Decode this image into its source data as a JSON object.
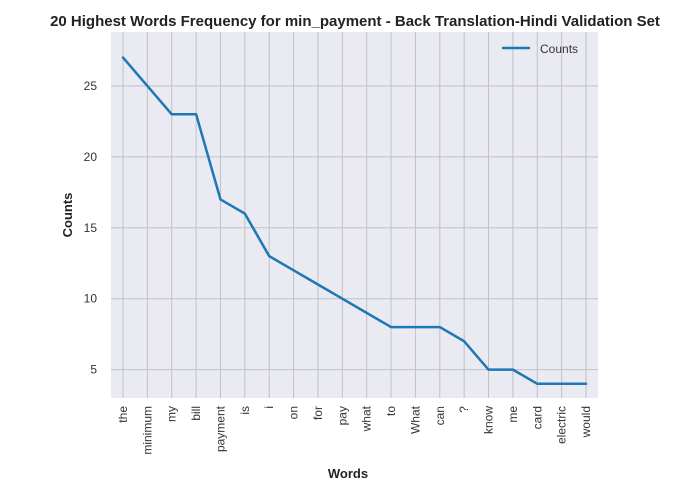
{
  "chart_data": {
    "type": "line",
    "title": "20 Highest Words Frequency for min_payment - Back Translation-Hindi Validation Set",
    "xlabel": "Words",
    "ylabel": "Counts",
    "categories": [
      "the",
      "minimum",
      "my",
      "bill",
      "payment",
      "is",
      "i",
      "on",
      "for",
      "pay",
      "what",
      "to",
      "What",
      "can",
      "?",
      "know",
      "me",
      "card",
      "electric",
      "would"
    ],
    "series": [
      {
        "name": "Counts",
        "values": [
          27,
          25,
          23,
          23,
          17,
          16,
          13,
          12,
          11,
          10,
          9,
          8,
          8,
          8,
          7,
          5,
          5,
          4,
          4,
          4
        ]
      }
    ],
    "ylim": [
      3,
      28.8
    ],
    "yticks": [
      5,
      10,
      15,
      20,
      25
    ],
    "grid": true,
    "legend_position": "top-right",
    "colors": {
      "line": "#1f77b4",
      "plot_background": "#eaeaf2",
      "grid": "#c0c0c6"
    }
  }
}
